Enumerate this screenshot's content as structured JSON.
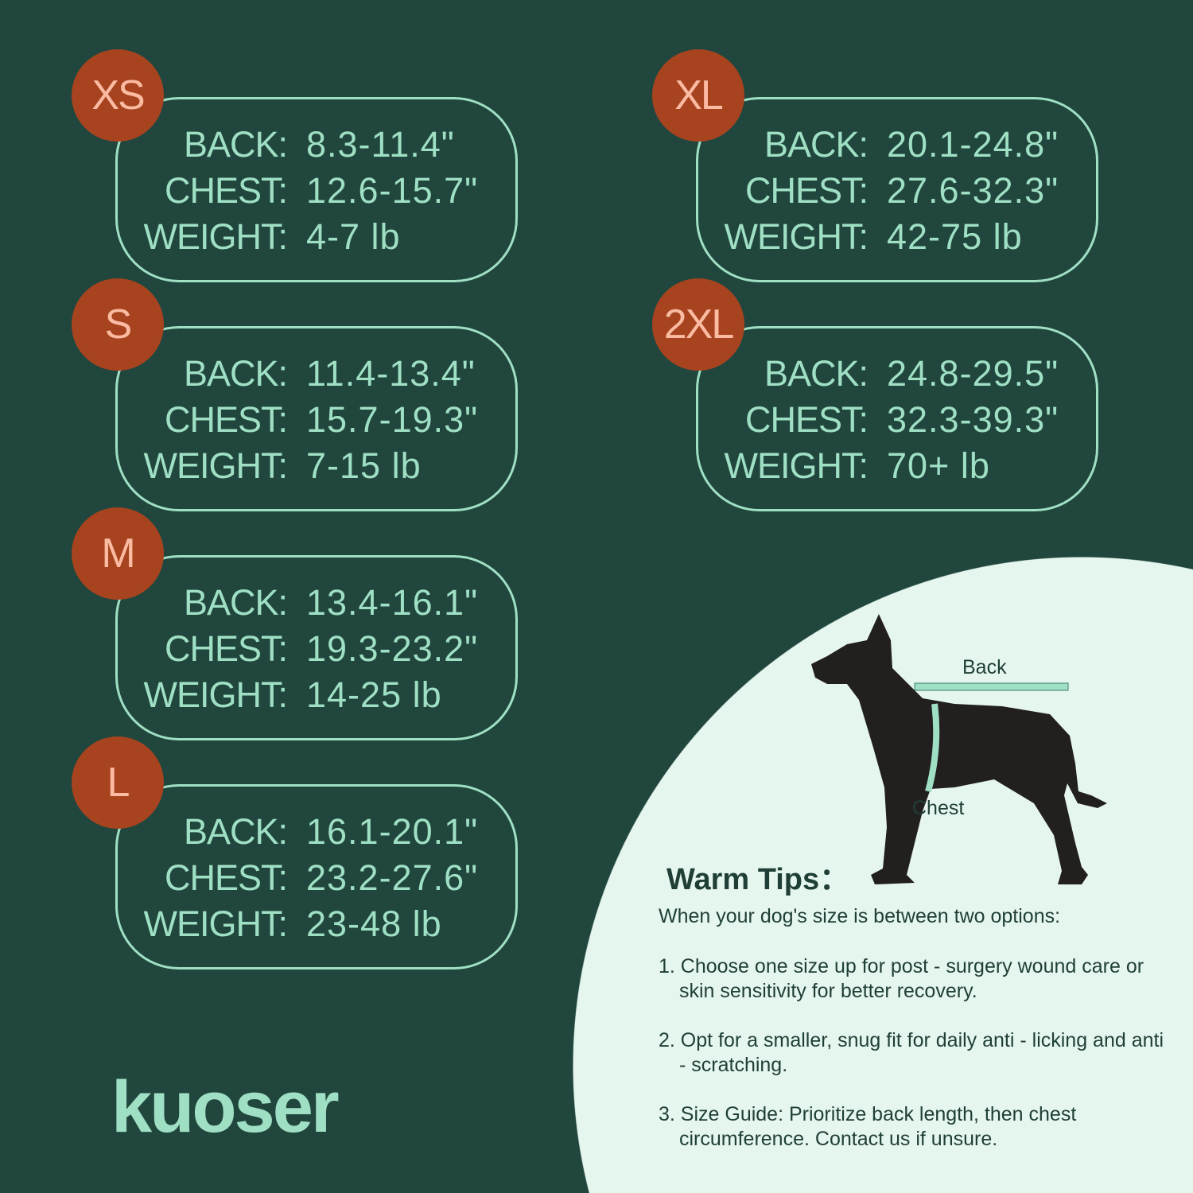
{
  "sizes_left": [
    {
      "size": "XS",
      "back": "8.3-11.4\"",
      "chest": "12.6-15.7\"",
      "weight": "4-7 lb"
    },
    {
      "size": "S",
      "back": "11.4-13.4\"",
      "chest": "15.7-19.3\"",
      "weight": "7-15 lb"
    },
    {
      "size": "M",
      "back": "13.4-16.1\"",
      "chest": "19.3-23.2\"",
      "weight": "14-25 lb"
    },
    {
      "size": "L",
      "back": "16.1-20.1\"",
      "chest": "23.2-27.6\"",
      "weight": "23-48 lb"
    }
  ],
  "sizes_right": [
    {
      "size": "XL",
      "back": "20.1-24.8\"",
      "chest": "27.6-32.3\"",
      "weight": "42-75 lb"
    },
    {
      "size": "2XL",
      "back": "24.8-29.5\"",
      "chest": "32.3-39.3\"",
      "weight": "70+ lb"
    }
  ],
  "labels": {
    "back": "BACK:",
    "chest": "CHEST:",
    "weight": "WEIGHT:"
  },
  "diagram": {
    "back": "Back",
    "chest": "Chest"
  },
  "tips": {
    "title": "Warm Tips：",
    "intro": "When your dog's size is between two options:",
    "items": [
      "1. Choose one size up for post - surgery wound care or skin sensitivity for better recovery.",
      "2. Opt for a smaller, snug fit for daily anti - licking and anti - scratching.",
      "3. Size Guide: Prioritize back length, then chest circumference. Contact us if unsure."
    ]
  },
  "brand": "kuoser",
  "colors": {
    "background": "#21463d",
    "accent": "#9fe0c5",
    "badge": "#a7441f",
    "panel": "#e5f6ee"
  }
}
